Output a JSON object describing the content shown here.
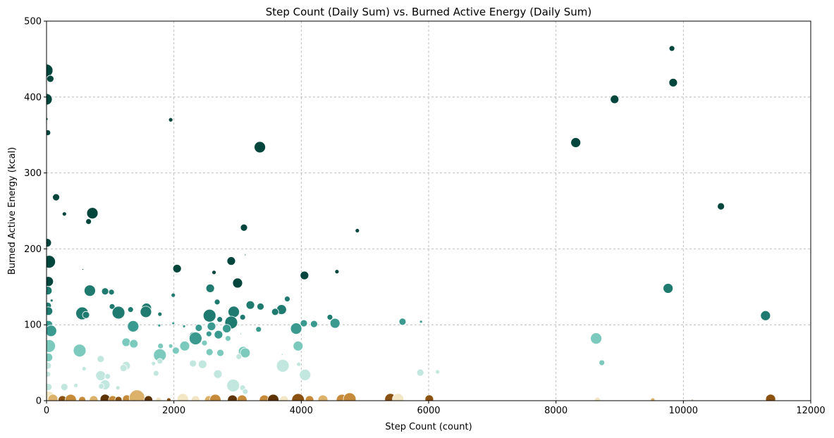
{
  "chart_data": {
    "type": "scatter",
    "title": "Step Count (Daily Sum) vs. Burned Active Energy (Daily Sum)",
    "xlabel": "Step Count (count)",
    "ylabel": "Burned Active Energy (kcal)",
    "xlim": [
      0,
      12000
    ],
    "ylim": [
      0,
      500
    ],
    "xticks": [
      0,
      2000,
      4000,
      6000,
      8000,
      10000,
      12000
    ],
    "yticks": [
      0,
      100,
      200,
      300,
      400,
      500
    ],
    "grid": true,
    "colormap": "BrBG",
    "colors": {
      "dark_teal": "#00463c",
      "teal": "#1f7a70",
      "mid_teal": "#3a9a8f",
      "light_teal": "#7ccabd",
      "pale_teal": "#c2e7df",
      "cream": "#f2e6c4",
      "tan": "#dcb16a",
      "ochre": "#c58a3a",
      "brown": "#8b5111",
      "dark_brown": "#5e3407"
    },
    "points": [
      {
        "x": 0,
        "y": 435,
        "s": 9,
        "c": "dark_teal"
      },
      {
        "x": 0,
        "y": 397,
        "s": 8,
        "c": "dark_teal"
      },
      {
        "x": 60,
        "y": 424,
        "s": 5,
        "c": "dark_teal"
      },
      {
        "x": 0,
        "y": 371,
        "s": 2,
        "c": "dark_teal"
      },
      {
        "x": 20,
        "y": 353,
        "s": 4,
        "c": "dark_teal"
      },
      {
        "x": 150,
        "y": 268,
        "s": 5,
        "c": "dark_teal"
      },
      {
        "x": 280,
        "y": 246,
        "s": 3,
        "c": "dark_teal"
      },
      {
        "x": 720,
        "y": 247,
        "s": 8,
        "c": "dark_teal"
      },
      {
        "x": 660,
        "y": 236,
        "s": 4,
        "c": "dark_teal"
      },
      {
        "x": 10,
        "y": 208,
        "s": 6,
        "c": "dark_teal"
      },
      {
        "x": 40,
        "y": 183,
        "s": 9,
        "c": "dark_teal"
      },
      {
        "x": 30,
        "y": 157,
        "s": 7,
        "c": "dark_teal"
      },
      {
        "x": 20,
        "y": 145,
        "s": 6,
        "c": "teal"
      },
      {
        "x": 20,
        "y": 125,
        "s": 5,
        "c": "teal"
      },
      {
        "x": 30,
        "y": 118,
        "s": 6,
        "c": "teal"
      },
      {
        "x": 80,
        "y": 132,
        "s": 2,
        "c": "teal"
      },
      {
        "x": 30,
        "y": 100,
        "s": 6,
        "c": "mid_teal"
      },
      {
        "x": 70,
        "y": 92,
        "s": 8,
        "c": "mid_teal"
      },
      {
        "x": 40,
        "y": 72,
        "s": 9,
        "c": "light_teal"
      },
      {
        "x": 30,
        "y": 57,
        "s": 6,
        "c": "light_teal"
      },
      {
        "x": 20,
        "y": 46,
        "s": 5,
        "c": "pale_teal"
      },
      {
        "x": 20,
        "y": 35,
        "s": 4,
        "c": "pale_teal"
      },
      {
        "x": 30,
        "y": 18,
        "s": 5,
        "c": "pale_teal"
      },
      {
        "x": 10,
        "y": 8,
        "s": 5,
        "c": "pale_teal"
      },
      {
        "x": 1950,
        "y": 370,
        "s": 3,
        "c": "dark_teal"
      },
      {
        "x": 3350,
        "y": 334,
        "s": 8,
        "c": "dark_teal"
      },
      {
        "x": 3100,
        "y": 228,
        "s": 5,
        "c": "dark_teal"
      },
      {
        "x": 4880,
        "y": 224,
        "s": 3,
        "c": "dark_teal"
      },
      {
        "x": 3120,
        "y": 192,
        "s": 1,
        "c": "dark_teal"
      },
      {
        "x": 2050,
        "y": 174,
        "s": 6,
        "c": "dark_teal"
      },
      {
        "x": 2630,
        "y": 169,
        "s": 3,
        "c": "dark_teal"
      },
      {
        "x": 2900,
        "y": 184,
        "s": 6,
        "c": "dark_teal"
      },
      {
        "x": 4560,
        "y": 170,
        "s": 3,
        "c": "dark_teal"
      },
      {
        "x": 4050,
        "y": 165,
        "s": 6,
        "c": "dark_teal"
      },
      {
        "x": 570,
        "y": 173,
        "s": 1,
        "c": "dark_teal"
      },
      {
        "x": 680,
        "y": 145,
        "s": 8,
        "c": "teal"
      },
      {
        "x": 920,
        "y": 144,
        "s": 5,
        "c": "teal"
      },
      {
        "x": 1020,
        "y": 143,
        "s": 4,
        "c": "teal"
      },
      {
        "x": 3000,
        "y": 155,
        "s": 7,
        "c": "dark_teal"
      },
      {
        "x": 2570,
        "y": 148,
        "s": 6,
        "c": "teal"
      },
      {
        "x": 1990,
        "y": 139,
        "s": 3,
        "c": "teal"
      },
      {
        "x": 3780,
        "y": 134,
        "s": 4,
        "c": "teal"
      },
      {
        "x": 3200,
        "y": 126,
        "s": 6,
        "c": "teal"
      },
      {
        "x": 3360,
        "y": 124,
        "s": 5,
        "c": "teal"
      },
      {
        "x": 1030,
        "y": 124,
        "s": 4,
        "c": "teal"
      },
      {
        "x": 1320,
        "y": 120,
        "s": 4,
        "c": "teal"
      },
      {
        "x": 1570,
        "y": 122,
        "s": 7,
        "c": "teal"
      },
      {
        "x": 1560,
        "y": 117,
        "s": 8,
        "c": "teal"
      },
      {
        "x": 1130,
        "y": 116,
        "s": 9,
        "c": "teal"
      },
      {
        "x": 560,
        "y": 115,
        "s": 9,
        "c": "teal"
      },
      {
        "x": 620,
        "y": 113,
        "s": 5,
        "c": "teal"
      },
      {
        "x": 2680,
        "y": 130,
        "s": 4,
        "c": "teal"
      },
      {
        "x": 2560,
        "y": 112,
        "s": 9,
        "c": "teal"
      },
      {
        "x": 2940,
        "y": 117,
        "s": 8,
        "c": "teal"
      },
      {
        "x": 3690,
        "y": 120,
        "s": 7,
        "c": "teal"
      },
      {
        "x": 3590,
        "y": 117,
        "s": 5,
        "c": "teal"
      },
      {
        "x": 1780,
        "y": 114,
        "s": 3,
        "c": "teal"
      },
      {
        "x": 3080,
        "y": 110,
        "s": 4,
        "c": "teal"
      },
      {
        "x": 4450,
        "y": 110,
        "s": 4,
        "c": "teal"
      },
      {
        "x": 2900,
        "y": 103,
        "s": 9,
        "c": "teal"
      },
      {
        "x": 2720,
        "y": 107,
        "s": 4,
        "c": "teal"
      },
      {
        "x": 4530,
        "y": 102,
        "s": 7,
        "c": "mid_teal"
      },
      {
        "x": 4040,
        "y": 102,
        "s": 5,
        "c": "mid_teal"
      },
      {
        "x": 4200,
        "y": 101,
        "s": 5,
        "c": "mid_teal"
      },
      {
        "x": 1360,
        "y": 98,
        "s": 8,
        "c": "mid_teal"
      },
      {
        "x": 2590,
        "y": 98,
        "s": 6,
        "c": "mid_teal"
      },
      {
        "x": 2390,
        "y": 96,
        "s": 5,
        "c": "mid_teal"
      },
      {
        "x": 2830,
        "y": 95,
        "s": 6,
        "c": "mid_teal"
      },
      {
        "x": 3330,
        "y": 94,
        "s": 4,
        "c": "mid_teal"
      },
      {
        "x": 3920,
        "y": 95,
        "s": 8,
        "c": "mid_teal"
      },
      {
        "x": 1990,
        "y": 102,
        "s": 2,
        "c": "mid_teal"
      },
      {
        "x": 1770,
        "y": 99,
        "s": 2,
        "c": "mid_teal"
      },
      {
        "x": 2160,
        "y": 98,
        "s": 2,
        "c": "mid_teal"
      },
      {
        "x": 2550,
        "y": 88,
        "s": 4,
        "c": "mid_teal"
      },
      {
        "x": 2700,
        "y": 87,
        "s": 6,
        "c": "mid_teal"
      },
      {
        "x": 2300,
        "y": 86,
        "s": 5,
        "c": "mid_teal"
      },
      {
        "x": 2340,
        "y": 82,
        "s": 9,
        "c": "mid_teal"
      },
      {
        "x": 2850,
        "y": 82,
        "s": 4,
        "c": "light_teal"
      },
      {
        "x": 3050,
        "y": 88,
        "s": 1,
        "c": "light_teal"
      },
      {
        "x": 5590,
        "y": 104,
        "s": 5,
        "c": "mid_teal"
      },
      {
        "x": 5880,
        "y": 104,
        "s": 2,
        "c": "mid_teal"
      },
      {
        "x": 8630,
        "y": 82,
        "s": 8,
        "c": "light_teal"
      },
      {
        "x": 1250,
        "y": 77,
        "s": 6,
        "c": "light_teal"
      },
      {
        "x": 1370,
        "y": 75,
        "s": 6,
        "c": "light_teal"
      },
      {
        "x": 1790,
        "y": 72,
        "s": 4,
        "c": "light_teal"
      },
      {
        "x": 1950,
        "y": 72,
        "s": 3,
        "c": "light_teal"
      },
      {
        "x": 2170,
        "y": 72,
        "s": 7,
        "c": "light_teal"
      },
      {
        "x": 2480,
        "y": 76,
        "s": 4,
        "c": "light_teal"
      },
      {
        "x": 3950,
        "y": 72,
        "s": 7,
        "c": "light_teal"
      },
      {
        "x": 520,
        "y": 66,
        "s": 9,
        "c": "light_teal"
      },
      {
        "x": 2030,
        "y": 66,
        "s": 5,
        "c": "light_teal"
      },
      {
        "x": 2560,
        "y": 64,
        "s": 5,
        "c": "light_teal"
      },
      {
        "x": 2730,
        "y": 63,
        "s": 5,
        "c": "light_teal"
      },
      {
        "x": 3090,
        "y": 65,
        "s": 7,
        "c": "light_teal"
      },
      {
        "x": 3120,
        "y": 63,
        "s": 7,
        "c": "light_teal"
      },
      {
        "x": 1780,
        "y": 60,
        "s": 9,
        "c": "light_teal"
      },
      {
        "x": 3700,
        "y": 61,
        "s": 1,
        "c": "light_teal"
      },
      {
        "x": 8720,
        "y": 50,
        "s": 4,
        "c": "light_teal"
      },
      {
        "x": 850,
        "y": 55,
        "s": 5,
        "c": "pale_teal"
      },
      {
        "x": 1780,
        "y": 52,
        "s": 4,
        "c": "pale_teal"
      },
      {
        "x": 1680,
        "y": 49,
        "s": 3,
        "c": "pale_teal"
      },
      {
        "x": 2300,
        "y": 49,
        "s": 5,
        "c": "pale_teal"
      },
      {
        "x": 2450,
        "y": 48,
        "s": 6,
        "c": "pale_teal"
      },
      {
        "x": 3710,
        "y": 46,
        "s": 9,
        "c": "pale_teal"
      },
      {
        "x": 3960,
        "y": 48,
        "s": 3,
        "c": "pale_teal"
      },
      {
        "x": 1250,
        "y": 46,
        "s": 6,
        "c": "pale_teal"
      },
      {
        "x": 1210,
        "y": 43,
        "s": 5,
        "c": "pale_teal"
      },
      {
        "x": 3020,
        "y": 58,
        "s": 4,
        "c": "pale_teal"
      },
      {
        "x": 590,
        "y": 42,
        "s": 3,
        "c": "pale_teal"
      },
      {
        "x": 4060,
        "y": 34,
        "s": 8,
        "c": "pale_teal"
      },
      {
        "x": 5870,
        "y": 37,
        "s": 5,
        "c": "pale_teal"
      },
      {
        "x": 6140,
        "y": 38,
        "s": 3,
        "c": "pale_teal"
      },
      {
        "x": 1720,
        "y": 36,
        "s": 4,
        "c": "pale_teal"
      },
      {
        "x": 2690,
        "y": 35,
        "s": 6,
        "c": "pale_teal"
      },
      {
        "x": 850,
        "y": 33,
        "s": 7,
        "c": "pale_teal"
      },
      {
        "x": 960,
        "y": 32,
        "s": 4,
        "c": "pale_teal"
      },
      {
        "x": 2930,
        "y": 20,
        "s": 9,
        "c": "pale_teal"
      },
      {
        "x": 3080,
        "y": 17,
        "s": 4,
        "c": "pale_teal"
      },
      {
        "x": 3120,
        "y": 12,
        "s": 4,
        "c": "pale_teal"
      },
      {
        "x": 920,
        "y": 21,
        "s": 7,
        "c": "pale_teal"
      },
      {
        "x": 860,
        "y": 19,
        "s": 4,
        "c": "pale_teal"
      },
      {
        "x": 1120,
        "y": 17,
        "s": 3,
        "c": "pale_teal"
      },
      {
        "x": 280,
        "y": 18,
        "s": 5,
        "c": "pale_teal"
      },
      {
        "x": 460,
        "y": 20,
        "s": 3,
        "c": "pale_teal"
      },
      {
        "x": 9820,
        "y": 464,
        "s": 4,
        "c": "dark_teal"
      },
      {
        "x": 9840,
        "y": 419,
        "s": 6,
        "c": "dark_teal"
      },
      {
        "x": 8920,
        "y": 397,
        "s": 6,
        "c": "dark_teal"
      },
      {
        "x": 8310,
        "y": 340,
        "s": 7,
        "c": "dark_teal"
      },
      {
        "x": 10590,
        "y": 256,
        "s": 5,
        "c": "dark_teal"
      },
      {
        "x": 9760,
        "y": 148,
        "s": 7,
        "c": "teal"
      },
      {
        "x": 11290,
        "y": 112,
        "s": 7,
        "c": "teal"
      },
      {
        "x": 30,
        "y": 3,
        "s": 10,
        "c": "cream"
      },
      {
        "x": 100,
        "y": 2,
        "s": 7,
        "c": "tan"
      },
      {
        "x": 250,
        "y": 1,
        "s": 6,
        "c": "brown"
      },
      {
        "x": 380,
        "y": 1,
        "s": 8,
        "c": "ochre"
      },
      {
        "x": 560,
        "y": 1,
        "s": 5,
        "c": "ochre"
      },
      {
        "x": 740,
        "y": 1,
        "s": 6,
        "c": "tan"
      },
      {
        "x": 920,
        "y": 2,
        "s": 7,
        "c": "dark_brown"
      },
      {
        "x": 1040,
        "y": 1,
        "s": 6,
        "c": "ochre"
      },
      {
        "x": 1130,
        "y": 1,
        "s": 5,
        "c": "brown"
      },
      {
        "x": 1260,
        "y": 2,
        "s": 6,
        "c": "ochre"
      },
      {
        "x": 1420,
        "y": 4,
        "s": 11,
        "c": "tan"
      },
      {
        "x": 1600,
        "y": 1,
        "s": 6,
        "c": "dark_brown"
      },
      {
        "x": 1760,
        "y": 1,
        "s": 4,
        "c": "cream"
      },
      {
        "x": 1920,
        "y": 1,
        "s": 3,
        "c": "brown"
      },
      {
        "x": 2140,
        "y": 2,
        "s": 8,
        "c": "cream"
      },
      {
        "x": 2340,
        "y": 1,
        "s": 6,
        "c": "cream"
      },
      {
        "x": 2550,
        "y": 1,
        "s": 6,
        "c": "tan"
      },
      {
        "x": 2650,
        "y": 1,
        "s": 8,
        "c": "ochre"
      },
      {
        "x": 2920,
        "y": 1,
        "s": 7,
        "c": "dark_brown"
      },
      {
        "x": 3070,
        "y": 1,
        "s": 7,
        "c": "ochre"
      },
      {
        "x": 3420,
        "y": 1,
        "s": 7,
        "c": "ochre"
      },
      {
        "x": 3560,
        "y": 1,
        "s": 8,
        "c": "dark_brown"
      },
      {
        "x": 3730,
        "y": 1,
        "s": 6,
        "c": "cream"
      },
      {
        "x": 3950,
        "y": 1,
        "s": 9,
        "c": "brown"
      },
      {
        "x": 4130,
        "y": 1,
        "s": 6,
        "c": "ochre"
      },
      {
        "x": 4340,
        "y": 1,
        "s": 7,
        "c": "tan"
      },
      {
        "x": 4640,
        "y": 1,
        "s": 8,
        "c": "ochre"
      },
      {
        "x": 4760,
        "y": 2,
        "s": 9,
        "c": "ochre"
      },
      {
        "x": 5400,
        "y": 2,
        "s": 8,
        "c": "brown"
      },
      {
        "x": 5520,
        "y": 2,
        "s": 8,
        "c": "cream"
      },
      {
        "x": 6010,
        "y": 2,
        "s": 6,
        "c": "brown"
      },
      {
        "x": 8650,
        "y": 1,
        "s": 4,
        "c": "cream"
      },
      {
        "x": 9520,
        "y": 1,
        "s": 3,
        "c": "tan"
      },
      {
        "x": 10140,
        "y": 1,
        "s": 1,
        "c": "brown"
      },
      {
        "x": 11370,
        "y": 2,
        "s": 7,
        "c": "brown"
      }
    ]
  }
}
